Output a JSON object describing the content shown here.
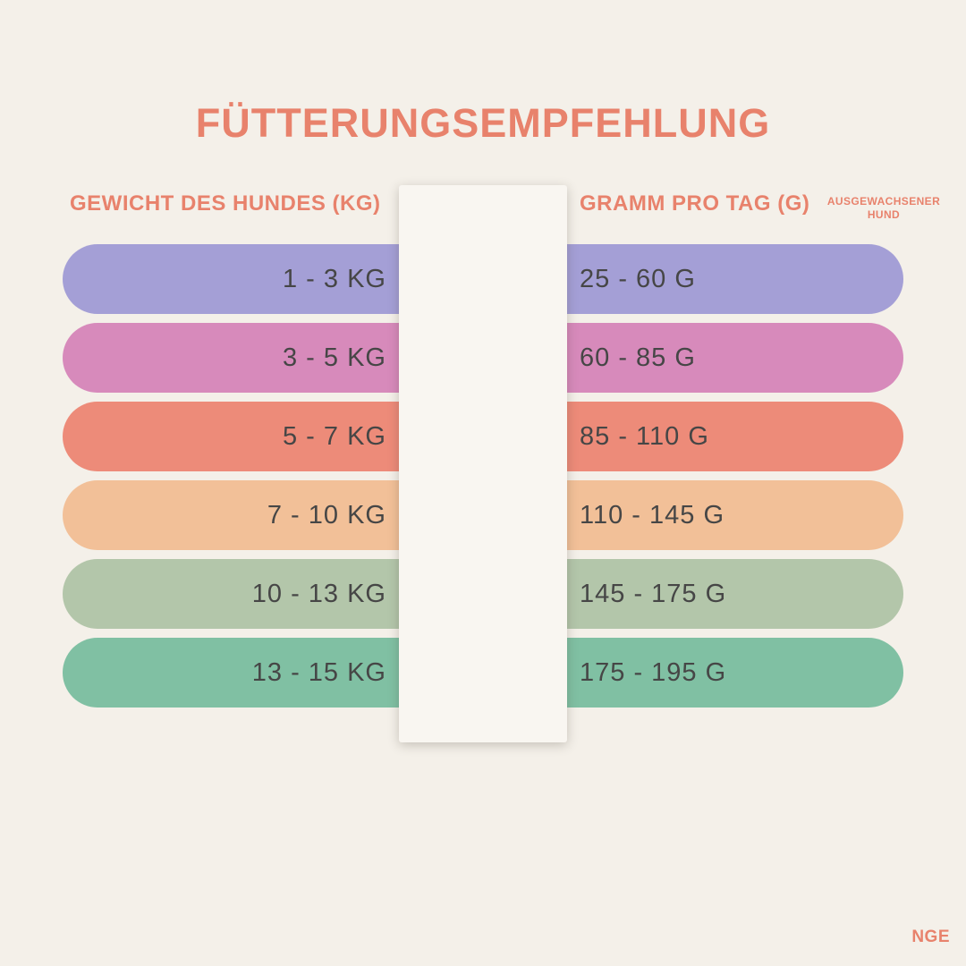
{
  "title": "FÜTTERUNGSEMPFEHLUNG",
  "header": {
    "left_column": "GEWICHT DES HUNDES (KG)",
    "right_column": "GRAMM PRO TAG (G)",
    "note": "AUSGEWACHSENER HUND"
  },
  "rows": [
    {
      "weight": "1 - 3 KG",
      "grams": "25 - 60 G",
      "color": "#a49fd6"
    },
    {
      "weight": "3 - 5 KG",
      "grams": "60 - 85 G",
      "color": "#d78abb"
    },
    {
      "weight": "5 - 7 KG",
      "grams": "85 - 110 G",
      "color": "#ed8b79"
    },
    {
      "weight": "7 - 10 KG",
      "grams": "110 - 145 G",
      "color": "#f2c098"
    },
    {
      "weight": "10 - 13 KG",
      "grams": "145 - 175 G",
      "color": "#b3c6aa"
    },
    {
      "weight": "13 - 15 KG",
      "grams": "175 - 195 G",
      "color": "#80c0a3"
    }
  ],
  "footer": {
    "brand": "NGE"
  },
  "colors": {
    "background": "#f4f0e9",
    "accent": "#e8826c",
    "divider_strip": "#f9f6f1",
    "row_text": "#464646"
  },
  "chart_data": {
    "type": "table",
    "title": "FÜTTERUNGSEMPFEHLUNG",
    "columns": [
      "GEWICHT DES HUNDES (KG)",
      "GRAMM PRO TAG (G)"
    ],
    "column_note": "AUSGEWACHSENER HUND",
    "rows": [
      [
        "1 - 3 KG",
        "25 - 60 G"
      ],
      [
        "3 - 5 KG",
        "60 - 85 G"
      ],
      [
        "5 - 7 KG",
        "85 - 110 G"
      ],
      [
        "7 - 10 KG",
        "110 - 145 G"
      ],
      [
        "10 - 13 KG",
        "145 - 175 G"
      ],
      [
        "13 - 15 KG",
        "175 - 195 G"
      ]
    ],
    "row_colors": [
      "#a49fd6",
      "#d78abb",
      "#ed8b79",
      "#f2c098",
      "#b3c6aa",
      "#80c0a3"
    ],
    "legend_position": "none",
    "grid": false
  }
}
